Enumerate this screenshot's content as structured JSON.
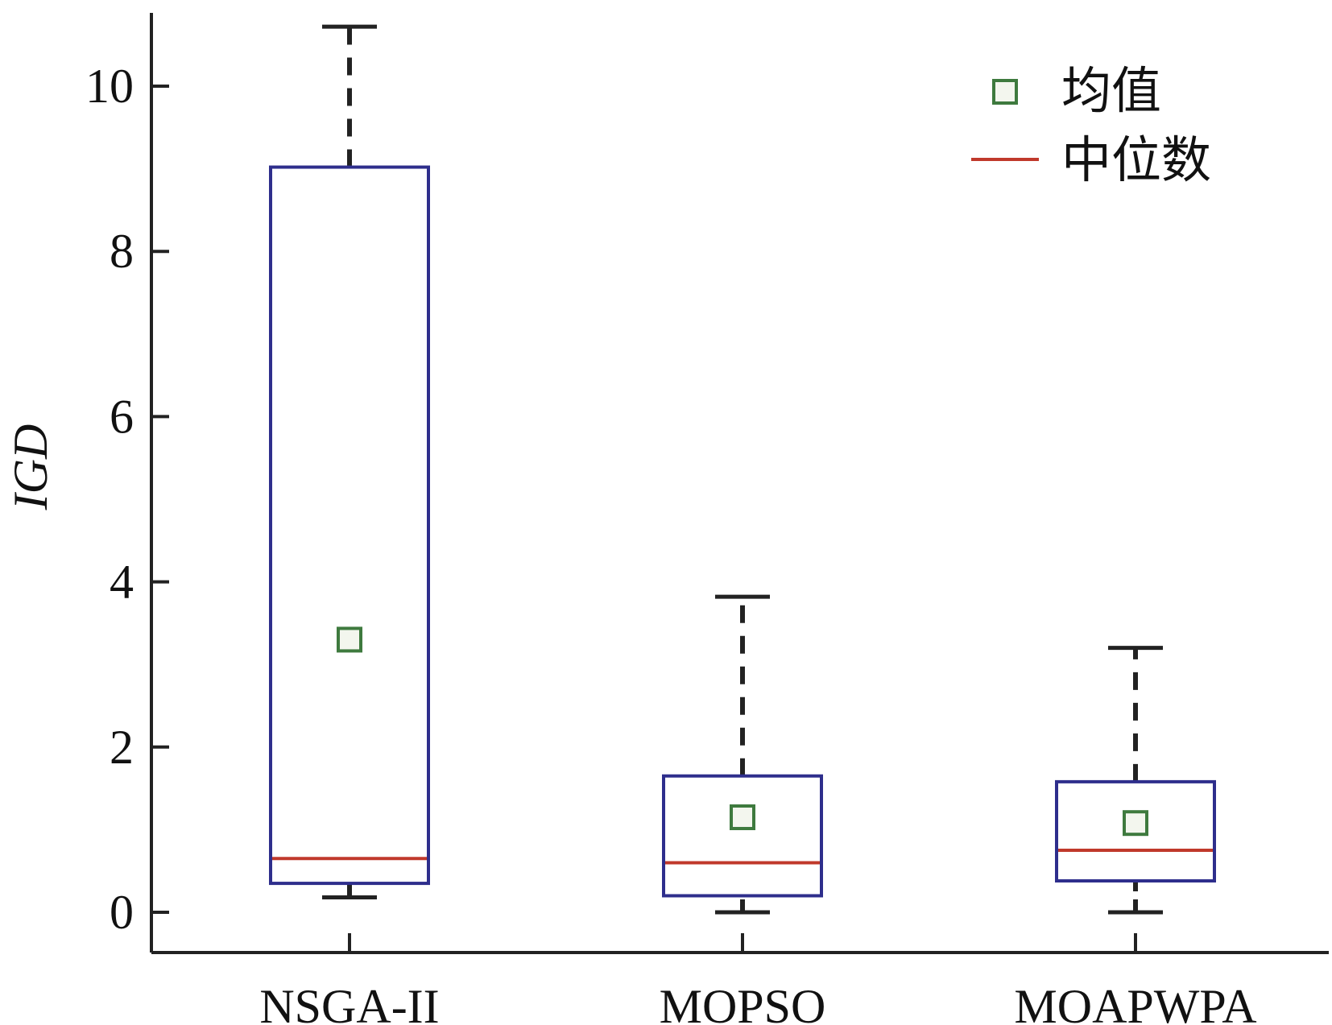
{
  "chart_data": {
    "type": "box",
    "title": "",
    "xlabel": "",
    "ylabel": "IGD",
    "ylim": [
      -0.5,
      11.4
    ],
    "yticks": [
      0,
      2,
      4,
      6,
      8,
      10
    ],
    "grid": false,
    "categories": [
      "NSGA-II",
      "MOPSO",
      "MOAPWPA"
    ],
    "boxes": [
      {
        "name": "NSGA-II",
        "min": 0.18,
        "q1": 0.35,
        "median": 0.65,
        "q3": 9.02,
        "max": 10.72,
        "mean": 3.3
      },
      {
        "name": "MOPSO",
        "min": 0.0,
        "q1": 0.2,
        "median": 0.6,
        "q3": 1.65,
        "max": 3.82,
        "mean": 1.15
      },
      {
        "name": "MOAPWPA",
        "min": 0.0,
        "q1": 0.38,
        "median": 0.75,
        "q3": 1.58,
        "max": 3.2,
        "mean": 1.08
      }
    ],
    "legend": {
      "position": "top-right",
      "items": [
        {
          "label": "均值",
          "marker": "square"
        },
        {
          "label": "中位数",
          "marker": "line"
        }
      ]
    },
    "colors": {
      "box": "#2e2e8c",
      "median": "#c0392b",
      "mean": "#3e7a3e",
      "whisker": "#222222",
      "axis": "#222222"
    }
  }
}
